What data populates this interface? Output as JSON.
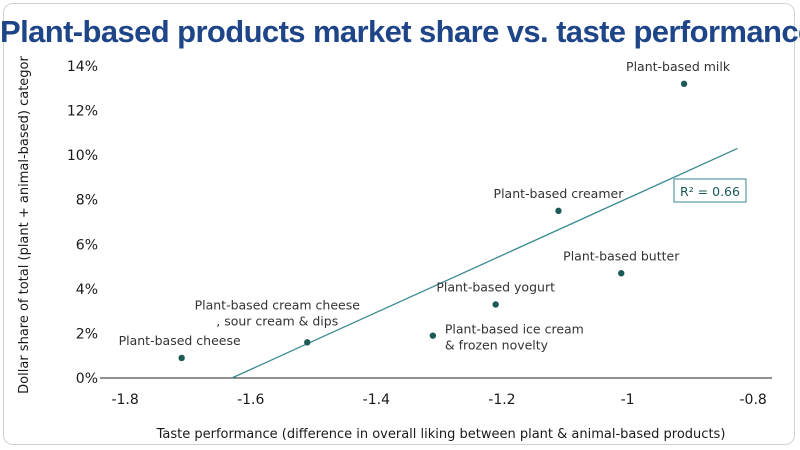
{
  "chart_data": {
    "type": "scatter",
    "title": "Plant-based products market share vs. taste performance",
    "xlabel": "Taste performance (difference in overall liking between plant & animal-based products)",
    "ylabel": "Dollar share of total (plant + animal-based) categor",
    "xlim": [
      -1.84,
      -0.77
    ],
    "ylim": [
      0,
      14
    ],
    "x_ticks": [
      "-1.8",
      "-1.6",
      "-1.4",
      "-1.2",
      "-1",
      "-0.8"
    ],
    "y_ticks": [
      "0%",
      "2%",
      "4%",
      "6%",
      "8%",
      "10%",
      "12%",
      "14%"
    ],
    "points": [
      {
        "label": "Plant-based cheese",
        "x": -1.71,
        "y": 0.9
      },
      {
        "label": "Plant-based cream cheese, sour cream & dips",
        "x": -1.51,
        "y": 1.6
      },
      {
        "label": "Plant-based ice cream & frozen novelty",
        "x": -1.31,
        "y": 1.9
      },
      {
        "label": "Plant-based yogurt",
        "x": -1.21,
        "y": 3.3
      },
      {
        "label": "Plant-based creamer",
        "x": -1.11,
        "y": 7.5
      },
      {
        "label": "Plant-based butter",
        "x": -1.01,
        "y": 4.7
      },
      {
        "label": "Plant-based milk",
        "x": -0.91,
        "y": 13.2
      }
    ],
    "trendline": {
      "x": [
        -1.63,
        -0.825
      ],
      "y": [
        0,
        10.3
      ],
      "annotation": "R² = 0.66"
    },
    "grid": false,
    "colors": {
      "point": "#1b5a55",
      "trendline": "#3a8a91",
      "title": "#1f4589"
    }
  }
}
